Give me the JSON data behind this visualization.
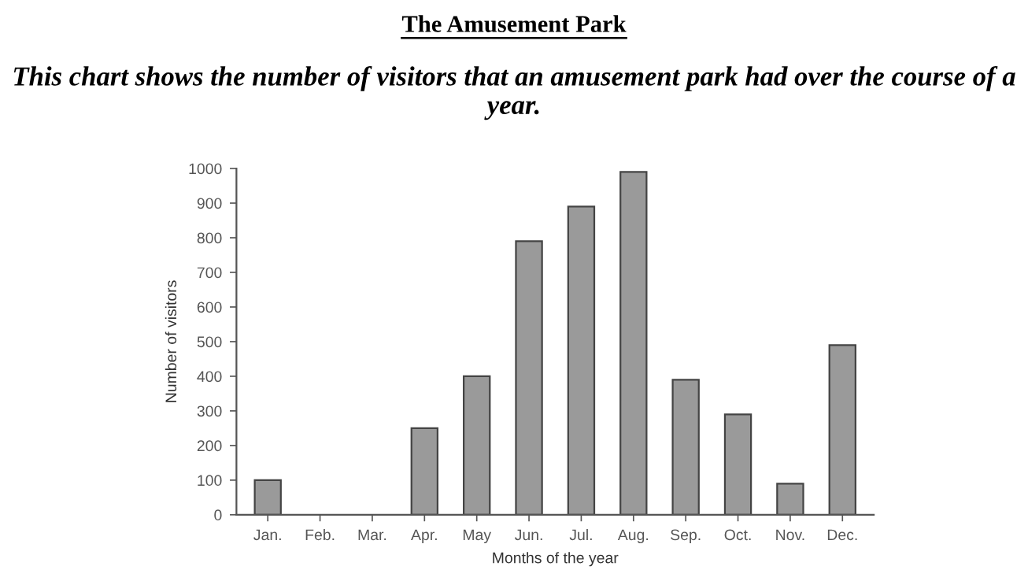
{
  "chart_data": {
    "type": "bar",
    "title": "The Amusement Park",
    "subtitle": "This chart shows the number of visitors that an amusement park had over the course of a year.",
    "xlabel": "Months of the year",
    "ylabel": "Number of visitors",
    "categories": [
      "Jan.",
      "Feb.",
      "Mar.",
      "Apr.",
      "May",
      "Jun.",
      "Jul.",
      "Aug.",
      "Sep.",
      "Oct.",
      "Nov.",
      "Dec."
    ],
    "values": [
      100,
      0,
      0,
      250,
      400,
      790,
      890,
      990,
      390,
      290,
      90,
      490
    ],
    "color": "#9a9a9a",
    "ylim": [
      0,
      1000
    ],
    "yticks": [
      0,
      100,
      200,
      300,
      400,
      500,
      600,
      700,
      800,
      900,
      1000
    ],
    "grid": false,
    "legend": false
  }
}
